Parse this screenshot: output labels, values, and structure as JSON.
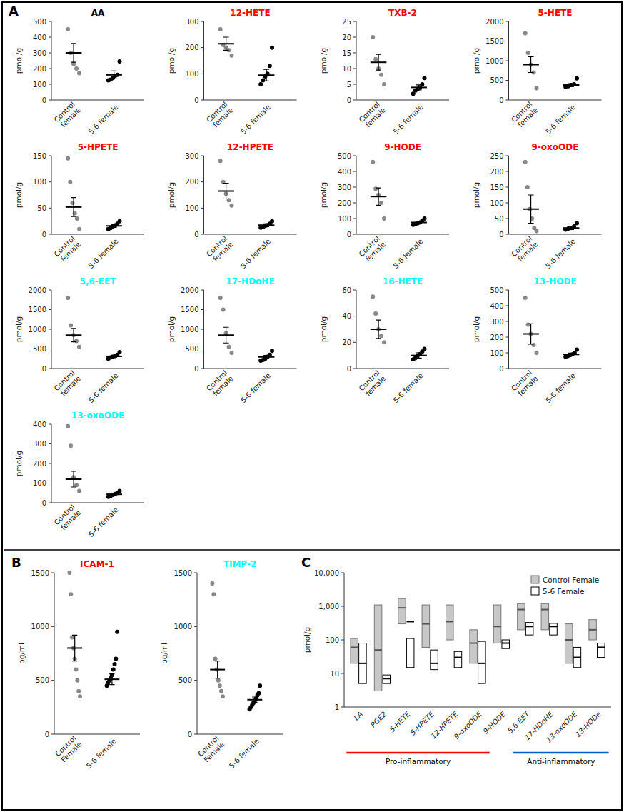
{
  "chart_data": [
    {
      "type": "strip",
      "title": "AA",
      "color": "black",
      "ylabel": "pmol/g",
      "ylim": [
        0,
        500
      ],
      "yticks": [
        0,
        100,
        200,
        300,
        400,
        500
      ],
      "categories": [
        "Control\nfemale",
        "5-6 female"
      ],
      "colors": [
        "#888888",
        "black"
      ],
      "points": [
        [
          450,
          300,
          230,
          200,
          170
        ],
        [
          125,
          130,
          140,
          155,
          160,
          245
        ]
      ],
      "mean": [
        300,
        160
      ],
      "sem": [
        60,
        25
      ],
      "annotations": [
        {
          "text": "A"
        }
      ]
    },
    {
      "type": "strip",
      "title": "12-HETE",
      "color": "red",
      "ylabel": "pmol/g",
      "ylim": [
        0,
        300
      ],
      "yticks": [
        0,
        100,
        200,
        300
      ],
      "categories": [
        "Control\nfemale",
        "5-6 female"
      ],
      "colors": [
        "#888888",
        "black"
      ],
      "points": [
        [
          270,
          210,
          200,
          190,
          170
        ],
        [
          60,
          75,
          90,
          100,
          130,
          200
        ]
      ],
      "mean": [
        215,
        95
      ],
      "sem": [
        25,
        22
      ]
    },
    {
      "type": "strip",
      "title": "TXB-2",
      "color": "red",
      "ylabel": "pmol/g",
      "ylim": [
        0,
        25
      ],
      "yticks": [
        0,
        5,
        10,
        15,
        20,
        25
      ],
      "categories": [
        "Control\nfemale",
        "5-6 female"
      ],
      "colors": [
        "#888888",
        "black"
      ],
      "points": [
        [
          20,
          13,
          10,
          8,
          5
        ],
        [
          2,
          3,
          3.5,
          4,
          5,
          7
        ]
      ],
      "mean": [
        12,
        4
      ],
      "sem": [
        2.5,
        0.8
      ]
    },
    {
      "type": "strip",
      "title": "5-HETE",
      "color": "red",
      "ylabel": "pmol/g",
      "ylim": [
        0,
        2000
      ],
      "yticks": [
        0,
        500,
        1000,
        1500,
        2000
      ],
      "categories": [
        "Control\nfemale",
        "5-6 female"
      ],
      "colors": [
        "#888888",
        "black"
      ],
      "points": [
        [
          1700,
          1200,
          900,
          700,
          300
        ],
        [
          330,
          350,
          380,
          400,
          550
        ]
      ],
      "mean": [
        900,
        380
      ],
      "sem": [
        200,
        35
      ]
    },
    {
      "type": "strip",
      "title": "5-HPETE",
      "color": "red",
      "ylabel": "pmol/g",
      "ylim": [
        0,
        150
      ],
      "yticks": [
        0,
        50,
        100,
        150
      ],
      "categories": [
        "Control\nfemale",
        "5-6 female"
      ],
      "colors": [
        "#888888",
        "black"
      ],
      "points": [
        [
          145,
          100,
          60,
          40,
          30,
          10
        ],
        [
          10,
          12,
          15,
          17,
          20,
          25
        ]
      ],
      "mean": [
        52,
        16
      ],
      "sem": [
        18,
        3
      ]
    },
    {
      "type": "strip",
      "title": "12-HPETE",
      "color": "red",
      "ylabel": "pmol/g",
      "ylim": [
        0,
        300
      ],
      "yticks": [
        0,
        100,
        200,
        300
      ],
      "categories": [
        "Control\nfemale",
        "5-6 female"
      ],
      "colors": [
        "#888888",
        "black"
      ],
      "points": [
        [
          280,
          200,
          155,
          130,
          110
        ],
        [
          25,
          28,
          32,
          35,
          40,
          50
        ]
      ],
      "mean": [
        165,
        35
      ],
      "sem": [
        30,
        5
      ]
    },
    {
      "type": "strip",
      "title": "9-HODE",
      "color": "red",
      "ylabel": "pmol/g",
      "ylim": [
        0,
        500
      ],
      "yticks": [
        0,
        100,
        200,
        300,
        400,
        500
      ],
      "categories": [
        "Control\nfemale",
        "5-6 female"
      ],
      "colors": [
        "#888888",
        "black"
      ],
      "points": [
        [
          460,
          290,
          250,
          200,
          100
        ],
        [
          60,
          65,
          70,
          75,
          85,
          100
        ]
      ],
      "mean": [
        240,
        75
      ],
      "sem": [
        55,
        8
      ]
    },
    {
      "type": "strip",
      "title": "9-oxoODE",
      "color": "red",
      "ylabel": "pmol/g",
      "ylim": [
        0,
        250
      ],
      "yticks": [
        0,
        50,
        100,
        150,
        200,
        250
      ],
      "categories": [
        "Control\nfemale",
        "5-6 female"
      ],
      "colors": [
        "#888888",
        "black"
      ],
      "points": [
        [
          230,
          150,
          80,
          50,
          20,
          10
        ],
        [
          15,
          18,
          20,
          25,
          35
        ]
      ],
      "mean": [
        80,
        20
      ],
      "sem": [
        45,
        5
      ]
    },
    {
      "type": "strip",
      "title": "5,6-EET",
      "color": "cyan",
      "ylabel": "pmol/g",
      "ylim": [
        0,
        2000
      ],
      "yticks": [
        0,
        500,
        1000,
        1500,
        2000
      ],
      "categories": [
        "Control\nfemale",
        "5-6 female"
      ],
      "colors": [
        "#888888",
        "black"
      ],
      "points": [
        [
          1800,
          1100,
          850,
          700,
          550
        ],
        [
          250,
          280,
          300,
          320,
          350,
          420
        ]
      ],
      "mean": [
        850,
        310
      ],
      "sem": [
        170,
        28
      ]
    },
    {
      "type": "strip",
      "title": "17-HDoHE",
      "color": "cyan",
      "ylabel": "pmol/g",
      "ylim": [
        0,
        2000
      ],
      "yticks": [
        0,
        500,
        1000,
        1500,
        2000
      ],
      "categories": [
        "Control\nfemale",
        "5-6 female"
      ],
      "colors": [
        "#888888",
        "black"
      ],
      "points": [
        [
          1800,
          1500,
          900,
          550,
          400
        ],
        [
          200,
          220,
          250,
          300,
          350,
          450
        ]
      ],
      "mean": [
        850,
        295
      ],
      "sem": [
        200,
        40
      ]
    },
    {
      "type": "strip",
      "title": "16-HETE",
      "color": "cyan",
      "ylabel": "pmol/g",
      "ylim": [
        0,
        60
      ],
      "yticks": [
        0,
        20,
        40,
        60
      ],
      "categories": [
        "Control\nfemale",
        "5-6 female"
      ],
      "colors": [
        "#888888",
        "black"
      ],
      "points": [
        [
          55,
          42,
          30,
          25,
          20
        ],
        [
          7,
          8,
          10,
          11,
          13,
          15
        ]
      ],
      "mean": [
        30,
        10
      ],
      "sem": [
        7,
        2
      ]
    },
    {
      "type": "strip",
      "title": "13-HODE",
      "color": "cyan",
      "ylabel": "pmol/g",
      "ylim": [
        0,
        500
      ],
      "yticks": [
        0,
        100,
        200,
        300,
        400,
        500
      ],
      "categories": [
        "Control\nfemale",
        "5-6 female"
      ],
      "colors": [
        "#888888",
        "black"
      ],
      "points": [
        [
          450,
          280,
          220,
          150,
          100
        ],
        [
          75,
          80,
          85,
          90,
          100,
          120
        ]
      ],
      "mean": [
        220,
        90
      ],
      "sem": [
        65,
        8
      ]
    },
    {
      "type": "strip",
      "title": "13-oxoODE",
      "color": "cyan",
      "ylabel": "pmol/g",
      "ylim": [
        0,
        400
      ],
      "yticks": [
        0,
        100,
        200,
        300,
        400
      ],
      "categories": [
        "Control\nfemale",
        "5-6 female"
      ],
      "colors": [
        "#888888",
        "black"
      ],
      "points": [
        [
          390,
          290,
          130,
          90,
          60
        ],
        [
          30,
          35,
          40,
          45,
          50,
          60
        ]
      ],
      "mean": [
        120,
        43
      ],
      "sem": [
        40,
        6
      ]
    },
    {
      "type": "strip",
      "title": "ICAM-1",
      "color": "red",
      "ylabel": "pg/ml",
      "ylim": [
        0,
        1500
      ],
      "yticks": [
        0,
        500,
        1000,
        1500
      ],
      "categories": [
        "Control\nFemale",
        "5-6 female"
      ],
      "colors": [
        "#888888",
        "black"
      ],
      "points": [
        [
          1500,
          1300,
          900,
          800,
          700,
          600,
          500,
          400,
          350
        ],
        [
          450,
          480,
          500,
          520,
          550,
          600,
          650,
          700,
          950
        ]
      ],
      "mean": [
        800,
        510
      ],
      "sem": [
        120,
        50
      ],
      "annotations": [
        {
          "text": "B"
        }
      ]
    },
    {
      "type": "strip",
      "title": "TIMP-2",
      "color": "cyan",
      "ylabel": "pg/ml",
      "ylim": [
        0,
        1500
      ],
      "yticks": [
        0,
        500,
        1000,
        1500
      ],
      "categories": [
        "Control\nFemale",
        "5-6 female"
      ],
      "colors": [
        "#888888",
        "black"
      ],
      "points": [
        [
          1400,
          1300,
          700,
          600,
          500,
          450,
          400,
          350
        ],
        [
          230,
          250,
          270,
          290,
          310,
          330,
          360,
          380,
          450
        ]
      ],
      "mean": [
        600,
        320
      ],
      "sem": [
        80,
        25
      ]
    },
    {
      "type": "box",
      "ylabel": "pmol/g",
      "log": "y",
      "ylim": [
        1,
        10000
      ],
      "yticks": [
        1,
        10,
        100,
        {
          "value": 1000,
          "label": "1,000"
        },
        {
          "value": 10000,
          "label": "10,000"
        }
      ],
      "categories": [
        "LA",
        "PGE2",
        "5-HETE",
        "5-HPETE",
        "12-HPETE",
        "9-oxoODE",
        "9-HODE",
        "5,6-EET",
        "17-HDoHE",
        "13-oxoODE",
        "13-HODe"
      ],
      "series": [
        {
          "name": "Control Female",
          "color": "#c8c8c8",
          "low": [
            20,
            3,
            300,
            60,
            100,
            20,
            80,
            200,
            200,
            20,
            100
          ],
          "high": [
            110,
            1100,
            1700,
            1100,
            1100,
            200,
            1100,
            1200,
            1200,
            300,
            400
          ],
          "mean": [
            60,
            50,
            900,
            300,
            350,
            80,
            250,
            800,
            800,
            100,
            200
          ]
        },
        {
          "name": "5-6 Female",
          "color": "white",
          "low": [
            5,
            5,
            15,
            13,
            15,
            5,
            55,
            140,
            140,
            15,
            30
          ],
          "high": [
            80,
            9,
            110,
            50,
            45,
            90,
            100,
            330,
            310,
            60,
            80
          ],
          "mean": [
            20,
            7,
            350,
            20,
            30,
            20,
            80,
            250,
            250,
            30,
            60
          ]
        }
      ],
      "legend": "upper right",
      "annotations": [
        {
          "text": "C"
        },
        {
          "text": "Pro-inflammatory",
          "color": "red",
          "start": "LA",
          "end": "9-oxoODE"
        },
        {
          "text": "Anti-inflammatory",
          "color": "#0066cc",
          "start": "5,6-EET",
          "end": "13-HODe"
        }
      ]
    }
  ]
}
